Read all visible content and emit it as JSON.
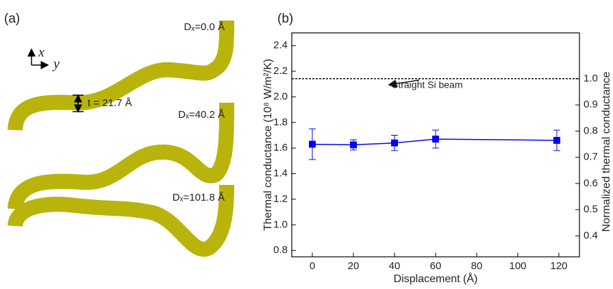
{
  "panel_a": {
    "label": "(a)",
    "axis_x": "x",
    "axis_y": "y",
    "thickness": "t = 21.7 Å",
    "beams": [
      "Dₓ=0.0 Å",
      "Dₓ=40.2 Å",
      "Dₓ=101.8 Å"
    ]
  },
  "chart_data": {
    "type": "line",
    "panel_label": "(b)",
    "x_label": "Displacement (Å)",
    "y_label": "Thermal conductance (10⁸ W/m²/K)",
    "y2_label": "Normalized thermal conductance",
    "x": [
      0,
      20,
      40,
      60,
      119
    ],
    "series": [
      {
        "color": "#0000ff",
        "values": [
          1.63,
          1.625,
          1.64,
          1.67,
          1.66
        ],
        "errors": [
          0.12,
          0.04,
          0.06,
          0.07,
          0.08
        ]
      }
    ],
    "xlim": [
      -10,
      130
    ],
    "xticks": [
      0,
      20,
      40,
      60,
      80,
      100,
      120
    ],
    "ylim": [
      0.75,
      2.5
    ],
    "yticks": [
      0.8,
      {
        "value": 1,
        "label": "1.0"
      },
      1.2,
      1.4,
      1.6,
      1.8,
      {
        "value": 2,
        "label": "2.0"
      },
      2.2,
      2.4
    ],
    "y2lim": [
      0.32,
      1.175
    ],
    "y2ticks": [
      0.4,
      0.5,
      0.6,
      0.7,
      0.8,
      0.9,
      {
        "value": 1,
        "label": "1.0"
      }
    ],
    "reference_line": {
      "axis": "y2",
      "value": 1,
      "text": "Straight Si beam"
    }
  }
}
